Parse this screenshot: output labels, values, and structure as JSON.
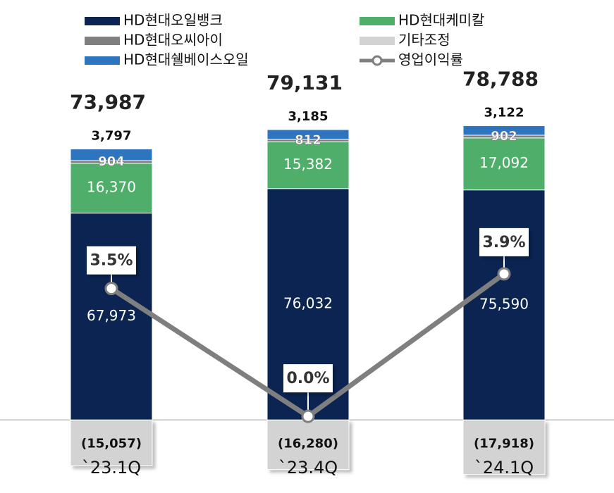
{
  "chart_data": {
    "type": "bar",
    "stacked": true,
    "categories": [
      "`23.1Q",
      "`23.4Q",
      "`24.1Q"
    ],
    "series": [
      {
        "name": "HD현대오일뱅크",
        "color": "#0b2452",
        "values": [
          67973,
          76032,
          75590
        ],
        "value_labels": [
          "67,973",
          "76,032",
          "75,590"
        ]
      },
      {
        "name": "HD현대케미칼",
        "color": "#4fae6a",
        "values": [
          16370,
          15382,
          17092
        ],
        "value_labels": [
          "16,370",
          "15,382",
          "17,092"
        ]
      },
      {
        "name": "HD현대오씨아이",
        "color": "#7f7f7f",
        "values": [
          904,
          812,
          902
        ],
        "value_labels": [
          "904",
          "812",
          "902"
        ]
      },
      {
        "name": "HD현대쉘베이스오일",
        "color": "#2e75c0",
        "values": [
          3797,
          3185,
          3122
        ],
        "value_labels": [
          "3,797",
          "3,185",
          "3,122"
        ]
      },
      {
        "name": "기타조정",
        "color": "#d3d3d3",
        "values": [
          -15057,
          -16280,
          -17918
        ],
        "value_labels": [
          "(15,057)",
          "(16,280)",
          "(17,918)"
        ]
      },
      {
        "name": "영업이익률",
        "type": "line",
        "axis": "y2",
        "color": "#7f7f7f",
        "values": [
          3.5,
          0.0,
          3.9
        ],
        "value_labels": [
          "3.5%",
          "0.0%",
          "3.9%"
        ]
      }
    ],
    "totals": [
      73987,
      79131,
      78788
    ],
    "total_labels": [
      "73,987",
      "79,131",
      "78,788"
    ],
    "ylim": [
      -24000,
      138000
    ],
    "y2lim": [
      -2.1,
      11.4
    ]
  }
}
